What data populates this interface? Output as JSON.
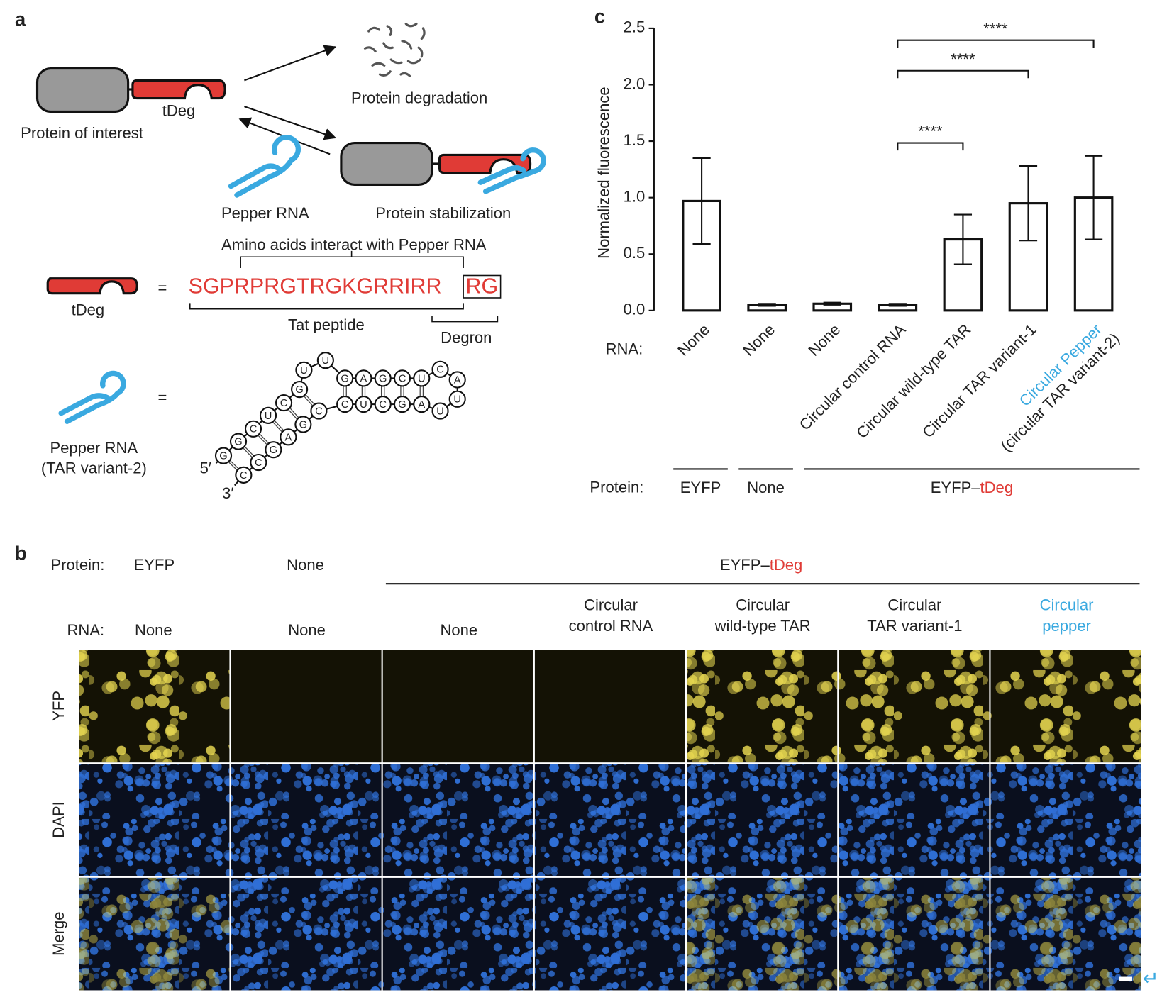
{
  "panel_labels": {
    "a": "a",
    "b": "b",
    "c": "c"
  },
  "panel_a": {
    "protein_of_interest": "Protein of interest",
    "tdeg": "tDeg",
    "protein_degradation": "Protein degradation",
    "pepper_rna": "Pepper RNA",
    "protein_stabilization": "Protein stabilization",
    "amino_acids": "Amino acids interact with Pepper RNA",
    "tdeg_eq": "tDeg",
    "equals": "=",
    "sequence": "SGPRPRGTRGKGRRIRR",
    "degron_seq": "RG",
    "tat_peptide": "Tat peptide",
    "degron": "Degron",
    "pepper_eq": "Pepper RNA",
    "pepper_variant": "(TAR variant-2)",
    "equals2": "=",
    "five_prime": "5′",
    "three_prime": "3′",
    "nucleotides": [
      "G",
      "G",
      "C",
      "U",
      "C",
      "G",
      "U",
      "U",
      "G",
      "A",
      "G",
      "C",
      "U",
      "C",
      "A",
      "U",
      "U",
      "A",
      "G",
      "C",
      "U",
      "C",
      "C",
      "G",
      "A",
      "G",
      "C",
      "C"
    ]
  },
  "chart_data": {
    "type": "bar",
    "ylabel": "Normalized fluorescence",
    "rna_label": "RNA:",
    "protein_label": "Protein:",
    "categories": [
      "None",
      "None",
      "None",
      "Circular control RNA",
      "Circular wild-type TAR",
      "Circular TAR variant-1",
      "Circular Pepper"
    ],
    "last_category_subtitle": "(circular TAR variant-2)",
    "values": [
      0.97,
      0.05,
      0.06,
      0.05,
      0.63,
      0.95,
      1.0
    ],
    "errors": [
      0.38,
      0.01,
      0.01,
      0.01,
      0.22,
      0.33,
      0.37
    ],
    "ylim": [
      0,
      2.5
    ],
    "yticks": [
      {
        "value": 0,
        "label": "0.0"
      },
      0.5,
      {
        "value": 1,
        "label": "1.0"
      },
      1.5,
      {
        "value": 2,
        "label": "2.0"
      },
      2.5
    ],
    "protein_groups": [
      {
        "name": "EYFP"
      },
      {
        "name": "None"
      },
      {
        "name": "EYFP–",
        "highlight": "tDeg"
      }
    ],
    "significance": [
      {
        "from": 3,
        "to": 4,
        "label": "****"
      },
      {
        "from": 3,
        "to": 5,
        "label": "****"
      },
      {
        "from": 3,
        "to": 6,
        "label": "****"
      }
    ],
    "color": "#ffffff"
  },
  "panel_b": {
    "protein_label": "Protein:",
    "proteins": [
      {
        "name": "EYFP"
      },
      {
        "name": "None"
      },
      {
        "name": "EYFP–",
        "highlight": "tDeg"
      }
    ],
    "rna_label": "RNA:",
    "rna_columns": [
      [
        "None"
      ],
      [
        "None"
      ],
      [
        "None"
      ],
      [
        "Circular",
        "control RNA"
      ],
      [
        "Circular",
        "wild-type TAR"
      ],
      [
        "Circular",
        "TAR variant-1"
      ],
      [
        "Circular",
        "pepper"
      ]
    ],
    "rows": [
      "YFP",
      "DAPI",
      "Merge"
    ],
    "return_symbol": "↵"
  }
}
